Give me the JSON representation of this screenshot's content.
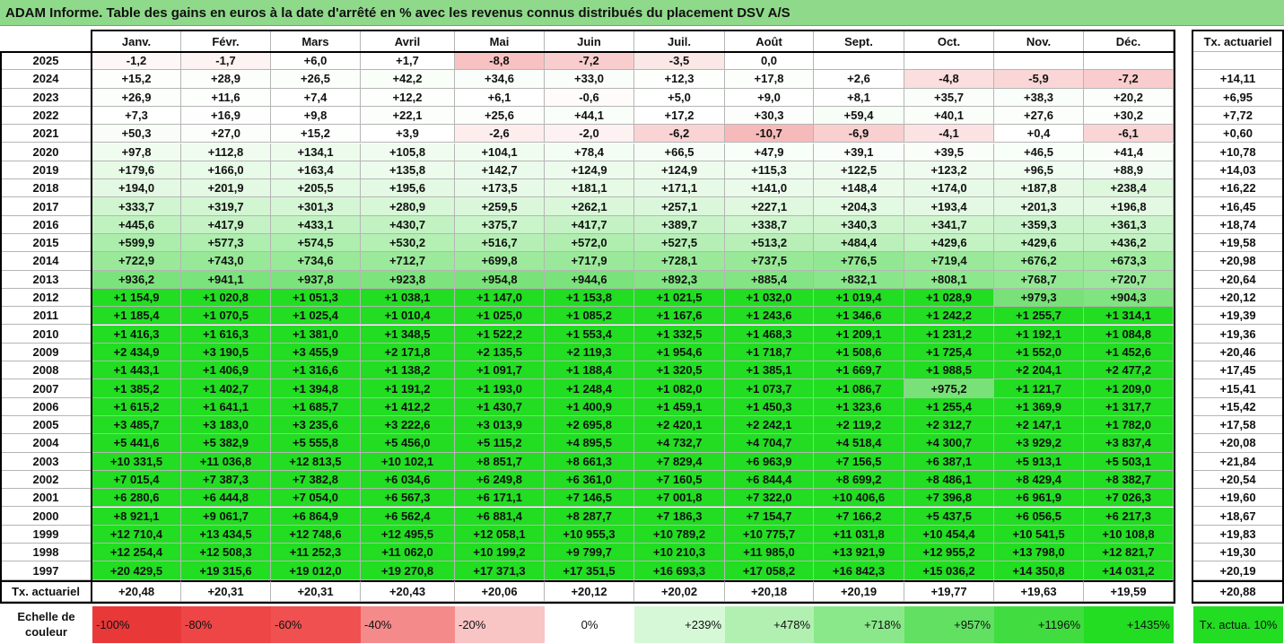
{
  "title": "ADAM Informe. Table des gains en euros à la date d'arrêté en % avec les revenus connus distribués du placement DSV A/S",
  "table": {
    "months": [
      "Janv.",
      "Févr.",
      "Mars",
      "Avril",
      "Mai",
      "Juin",
      "Juil.",
      "Août",
      "Sept.",
      "Oct.",
      "Nov.",
      "Déc."
    ],
    "rate_header": "Tx. actuariel",
    "rows": [
      {
        "year": "2025",
        "cells": [
          "-1,2",
          "-1,7",
          "+6,0",
          "+1,7",
          "-8,8",
          "-7,2",
          "-3,5",
          "0,0",
          null,
          null,
          null,
          null
        ],
        "rate": null
      },
      {
        "year": "2024",
        "cells": [
          "+15,2",
          "+28,9",
          "+26,5",
          "+42,2",
          "+34,6",
          "+33,0",
          "+12,3",
          "+17,8",
          "+2,6",
          "-4,8",
          "-5,9",
          "-7,2"
        ],
        "rate": "+14,11"
      },
      {
        "year": "2023",
        "cells": [
          "+26,9",
          "+11,6",
          "+7,4",
          "+12,2",
          "+6,1",
          "-0,6",
          "+5,0",
          "+9,0",
          "+8,1",
          "+35,7",
          "+38,3",
          "+20,2"
        ],
        "rate": "+6,95"
      },
      {
        "year": "2022",
        "cells": [
          "+7,3",
          "+16,9",
          "+9,8",
          "+22,1",
          "+25,6",
          "+44,1",
          "+17,2",
          "+30,3",
          "+59,4",
          "+40,1",
          "+27,6",
          "+30,2"
        ],
        "rate": "+7,72"
      },
      {
        "year": "2021",
        "cells": [
          "+50,3",
          "+27,0",
          "+15,2",
          "+3,9",
          "-2,6",
          "-2,0",
          "-6,2",
          "-10,7",
          "-6,9",
          "-4,1",
          "+0,4",
          "-6,1"
        ],
        "rate": "+0,60"
      },
      {
        "year": "2020",
        "cells": [
          "+97,8",
          "+112,8",
          "+134,1",
          "+105,8",
          "+104,1",
          "+78,4",
          "+66,5",
          "+47,9",
          "+39,1",
          "+39,5",
          "+46,5",
          "+41,4"
        ],
        "rate": "+10,78"
      },
      {
        "year": "2019",
        "cells": [
          "+179,6",
          "+166,0",
          "+163,4",
          "+135,8",
          "+142,7",
          "+124,9",
          "+124,9",
          "+115,3",
          "+122,5",
          "+123,2",
          "+96,5",
          "+88,9"
        ],
        "rate": "+14,03"
      },
      {
        "year": "2018",
        "cells": [
          "+194,0",
          "+201,9",
          "+205,5",
          "+195,6",
          "+173,5",
          "+181,1",
          "+171,1",
          "+141,0",
          "+148,4",
          "+174,0",
          "+187,8",
          "+238,4"
        ],
        "rate": "+16,22"
      },
      {
        "year": "2017",
        "cells": [
          "+333,7",
          "+319,7",
          "+301,3",
          "+280,9",
          "+259,5",
          "+262,1",
          "+257,1",
          "+227,1",
          "+204,3",
          "+193,4",
          "+201,3",
          "+196,8"
        ],
        "rate": "+16,45"
      },
      {
        "year": "2016",
        "cells": [
          "+445,6",
          "+417,9",
          "+433,1",
          "+430,7",
          "+375,7",
          "+417,7",
          "+389,7",
          "+338,7",
          "+340,3",
          "+341,7",
          "+359,3",
          "+361,3"
        ],
        "rate": "+18,74"
      },
      {
        "year": "2015",
        "cells": [
          "+599,9",
          "+577,3",
          "+574,5",
          "+530,2",
          "+516,7",
          "+572,0",
          "+527,5",
          "+513,2",
          "+484,4",
          "+429,6",
          "+429,6",
          "+436,2"
        ],
        "rate": "+19,58"
      },
      {
        "year": "2014",
        "cells": [
          "+722,9",
          "+743,0",
          "+734,6",
          "+712,7",
          "+699,8",
          "+717,9",
          "+728,1",
          "+737,5",
          "+776,5",
          "+719,4",
          "+676,2",
          "+673,3"
        ],
        "rate": "+20,98"
      },
      {
        "year": "2013",
        "cells": [
          "+936,2",
          "+941,1",
          "+937,8",
          "+923,8",
          "+954,8",
          "+944,6",
          "+892,3",
          "+885,4",
          "+832,1",
          "+808,1",
          "+768,7",
          "+720,7"
        ],
        "rate": "+20,64"
      },
      {
        "year": "2012",
        "cells": [
          "+1 154,9",
          "+1 020,8",
          "+1 051,3",
          "+1 038,1",
          "+1 147,0",
          "+1 153,8",
          "+1 021,5",
          "+1 032,0",
          "+1 019,4",
          "+1 028,9",
          "+979,3",
          "+904,3"
        ],
        "rate": "+20,12"
      },
      {
        "year": "2011",
        "cells": [
          "+1 185,4",
          "+1 070,5",
          "+1 025,4",
          "+1 010,4",
          "+1 025,0",
          "+1 085,2",
          "+1 167,6",
          "+1 243,6",
          "+1 346,6",
          "+1 242,2",
          "+1 255,7",
          "+1 314,1"
        ],
        "rate": "+19,39"
      },
      {
        "year": "2010",
        "cells": [
          "+1 416,3",
          "+1 616,3",
          "+1 381,0",
          "+1 348,5",
          "+1 522,2",
          "+1 553,4",
          "+1 332,5",
          "+1 468,3",
          "+1 209,1",
          "+1 231,2",
          "+1 192,1",
          "+1 084,8"
        ],
        "rate": "+19,36"
      },
      {
        "year": "2009",
        "cells": [
          "+2 434,9",
          "+3 190,5",
          "+3 455,9",
          "+2 171,8",
          "+2 135,5",
          "+2 119,3",
          "+1 954,6",
          "+1 718,7",
          "+1 508,6",
          "+1 725,4",
          "+1 552,0",
          "+1 452,6"
        ],
        "rate": "+20,46"
      },
      {
        "year": "2008",
        "cells": [
          "+1 443,1",
          "+1 406,9",
          "+1 316,6",
          "+1 138,2",
          "+1 091,7",
          "+1 188,4",
          "+1 320,5",
          "+1 385,1",
          "+1 669,7",
          "+1 988,5",
          "+2 204,1",
          "+2 477,2"
        ],
        "rate": "+17,45"
      },
      {
        "year": "2007",
        "cells": [
          "+1 385,2",
          "+1 402,7",
          "+1 394,8",
          "+1 191,2",
          "+1 193,0",
          "+1 248,4",
          "+1 082,0",
          "+1 073,7",
          "+1 086,7",
          "+975,2",
          "+1 121,7",
          "+1 209,0"
        ],
        "rate": "+15,41"
      },
      {
        "year": "2006",
        "cells": [
          "+1 615,2",
          "+1 641,1",
          "+1 685,7",
          "+1 412,2",
          "+1 430,7",
          "+1 400,9",
          "+1 459,1",
          "+1 450,3",
          "+1 323,6",
          "+1 255,4",
          "+1 369,9",
          "+1 317,7"
        ],
        "rate": "+15,42"
      },
      {
        "year": "2005",
        "cells": [
          "+3 485,7",
          "+3 183,0",
          "+3 235,6",
          "+3 222,6",
          "+3 013,9",
          "+2 695,8",
          "+2 420,1",
          "+2 242,1",
          "+2 119,2",
          "+2 312,7",
          "+2 147,1",
          "+1 782,0"
        ],
        "rate": "+17,58"
      },
      {
        "year": "2004",
        "cells": [
          "+5 441,6",
          "+5 382,9",
          "+5 555,8",
          "+5 456,0",
          "+5 115,2",
          "+4 895,5",
          "+4 732,7",
          "+4 704,7",
          "+4 518,4",
          "+4 300,7",
          "+3 929,2",
          "+3 837,4"
        ],
        "rate": "+20,08"
      },
      {
        "year": "2003",
        "cells": [
          "+10 331,5",
          "+11 036,8",
          "+12 813,5",
          "+10 102,1",
          "+8 851,7",
          "+8 661,3",
          "+7 829,4",
          "+6 963,9",
          "+7 156,5",
          "+6 387,1",
          "+5 913,1",
          "+5 503,1"
        ],
        "rate": "+21,84"
      },
      {
        "year": "2002",
        "cells": [
          "+7 015,4",
          "+7 387,3",
          "+7 382,8",
          "+6 034,6",
          "+6 249,8",
          "+6 361,0",
          "+7 160,5",
          "+6 844,4",
          "+8 699,2",
          "+8 486,1",
          "+8 429,4",
          "+8 382,7"
        ],
        "rate": "+20,54"
      },
      {
        "year": "2001",
        "cells": [
          "+6 280,6",
          "+6 444,8",
          "+7 054,0",
          "+6 567,3",
          "+6 171,1",
          "+7 146,5",
          "+7 001,8",
          "+7 322,0",
          "+10 406,6",
          "+7 396,8",
          "+6 961,9",
          "+7 026,3"
        ],
        "rate": "+19,60"
      },
      {
        "year": "2000",
        "cells": [
          "+8 921,1",
          "+9 061,7",
          "+6 864,9",
          "+6 562,4",
          "+6 881,4",
          "+8 287,7",
          "+7 186,3",
          "+7 154,7",
          "+7 166,2",
          "+5 437,5",
          "+6 056,5",
          "+6 217,3"
        ],
        "rate": "+18,67"
      },
      {
        "year": "1999",
        "cells": [
          "+12 710,4",
          "+13 434,5",
          "+12 748,6",
          "+12 495,5",
          "+12 058,1",
          "+10 955,3",
          "+10 789,2",
          "+10 775,7",
          "+11 031,8",
          "+10 454,4",
          "+10 541,5",
          "+10 108,8"
        ],
        "rate": "+19,83"
      },
      {
        "year": "1998",
        "cells": [
          "+12 254,4",
          "+12 508,3",
          "+11 252,3",
          "+11 062,0",
          "+10 199,2",
          "+9 799,7",
          "+10 210,3",
          "+11 985,0",
          "+13 921,9",
          "+12 955,2",
          "+13 798,0",
          "+12 821,7"
        ],
        "rate": "+19,30"
      },
      {
        "year": "1997",
        "cells": [
          "+20 429,5",
          "+19 315,6",
          "+19 012,0",
          "+19 270,8",
          "+17 371,3",
          "+17 351,5",
          "+16 693,3",
          "+17 058,2",
          "+16 842,3",
          "+15 036,2",
          "+14 350,8",
          "+14 031,2"
        ],
        "rate": "+20,19"
      }
    ],
    "footer": {
      "label": "Tx. actuariel",
      "cells": [
        "+20,48",
        "+20,31",
        "+20,31",
        "+20,43",
        "+20,06",
        "+20,12",
        "+20,02",
        "+20,18",
        "+20,19",
        "+19,77",
        "+19,63",
        "+19,59"
      ],
      "rate": "+20,88"
    }
  },
  "scale": {
    "label": "Echelle de couleur",
    "steps": [
      "-100%",
      "-80%",
      "-60%",
      "-40%",
      "-20%",
      "0%",
      "+239%",
      "+478%",
      "+718%",
      "+957%",
      "+1196%",
      "+1435%"
    ],
    "rate_note": "Tx. actua. 10%"
  }
}
